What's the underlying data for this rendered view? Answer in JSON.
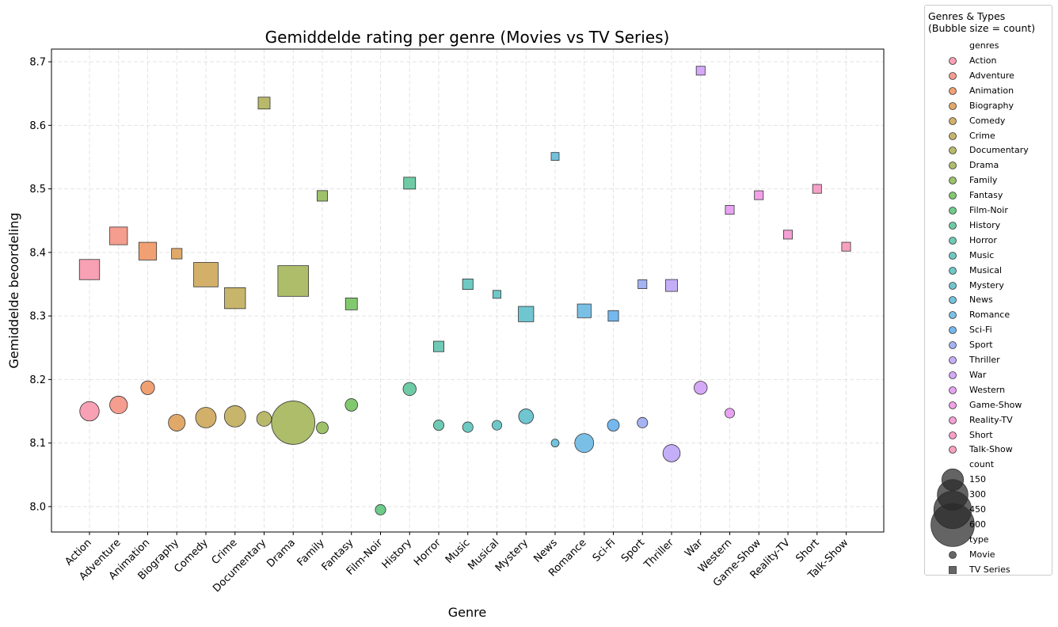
{
  "chart_data": {
    "type": "scatter",
    "title": "Gemiddelde rating per genre (Movies vs TV Series)",
    "xlabel": "Genre",
    "ylabel": "Gemiddelde beoordeling",
    "ylim": [
      7.96,
      8.72
    ],
    "yticks": [
      "8.0",
      "8.1",
      "8.2",
      "8.3",
      "8.4",
      "8.5",
      "8.6",
      "8.7"
    ],
    "grid": true,
    "categories": [
      "Action",
      "Adventure",
      "Animation",
      "Biography",
      "Comedy",
      "Crime",
      "Documentary",
      "Drama",
      "Family",
      "Fantasy",
      "Film-Noir",
      "History",
      "Horror",
      "Music",
      "Musical",
      "Mystery",
      "News",
      "Romance",
      "Sci-Fi",
      "Sport",
      "Thriller",
      "War",
      "Western",
      "Game-Show",
      "Reality-TV",
      "Short",
      "Talk-Show"
    ],
    "colors": [
      "#f8a0b4",
      "#f59d8e",
      "#f0a073",
      "#e0a96a",
      "#d2b06a",
      "#c6b56b",
      "#b9b96b",
      "#adbd6a",
      "#9ec16a",
      "#82c86e",
      "#6ecb8a",
      "#6ecba5",
      "#6ecab4",
      "#6ec9c2",
      "#6ec8c8",
      "#6fc5d0",
      "#72c2dc",
      "#7ac0e6",
      "#74b8ef",
      "#a5b3f3",
      "#c4aef8",
      "#d6a8f8",
      "#e7a3f2",
      "#f2a0e7",
      "#f5a0d5",
      "#f7a0c7",
      "#f7a2bd"
    ],
    "series": [
      {
        "name": "Movie",
        "marker": "circle",
        "values": [
          8.15,
          8.16,
          8.187,
          8.132,
          8.14,
          8.142,
          8.138,
          8.132,
          8.124,
          8.16,
          7.995,
          8.185,
          8.128,
          8.125,
          8.128,
          8.142,
          8.1,
          8.1,
          8.128,
          8.132,
          8.084,
          8.187,
          8.147,
          null,
          null,
          null,
          null
        ],
        "counts": [
          120,
          100,
          60,
          90,
          135,
          145,
          70,
          600,
          45,
          50,
          35,
          55,
          35,
          35,
          30,
          70,
          20,
          115,
          45,
          35,
          95,
          55,
          30,
          null,
          null,
          null,
          null
        ]
      },
      {
        "name": "TV Series",
        "marker": "square",
        "values": [
          8.373,
          8.426,
          8.402,
          8.398,
          8.365,
          8.328,
          8.635,
          8.355,
          8.489,
          8.319,
          null,
          8.509,
          8.252,
          8.35,
          8.334,
          8.303,
          8.551,
          8.308,
          8.3,
          8.35,
          8.348,
          8.686,
          8.467,
          8.49,
          8.428,
          8.5,
          8.409
        ],
        "counts": [
          130,
          100,
          100,
          35,
          190,
          140,
          45,
          300,
          35,
          45,
          null,
          45,
          35,
          35,
          20,
          75,
          20,
          60,
          35,
          25,
          45,
          25,
          25,
          25,
          25,
          25,
          25
        ]
      }
    ],
    "legend": {
      "placement": "outside-right",
      "title": "Genres & Types\n(Bubble size = count)",
      "genres_header": "genres",
      "count_header": "count",
      "count_values": [
        150,
        300,
        450,
        600
      ],
      "type_header": "type",
      "type_entries": [
        "Movie",
        "TV Series"
      ]
    }
  }
}
